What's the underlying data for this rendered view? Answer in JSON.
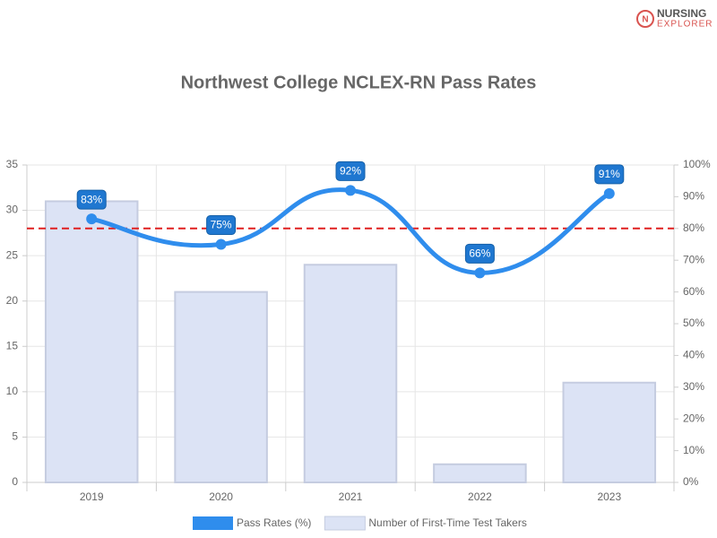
{
  "logo": {
    "line1": "NURSING",
    "line2": "EXPLORER"
  },
  "chart_data": {
    "type": "combo",
    "title": "Northwest College NCLEX-RN Pass Rates",
    "categories": [
      "2019",
      "2020",
      "2021",
      "2022",
      "2023"
    ],
    "series": [
      {
        "name": "Pass Rates (%)",
        "type": "line",
        "axis": "y2",
        "color": "#2f8ded",
        "values": [
          83,
          75,
          92,
          66,
          91
        ],
        "value_labels": [
          "83%",
          "75%",
          "92%",
          "66%",
          "91%"
        ]
      },
      {
        "name": "Number of First-Time Test Takers",
        "type": "bar",
        "axis": "y",
        "color": "#dce3f5",
        "values": [
          31,
          21,
          24,
          2,
          11
        ]
      }
    ],
    "ylim": [
      0,
      35
    ],
    "yticks": [
      0,
      5,
      10,
      15,
      20,
      25,
      30,
      35
    ],
    "y2lim": [
      0,
      100
    ],
    "y2ticks": [
      {
        "value": 0,
        "label": "0%"
      },
      {
        "value": 10,
        "label": "10%"
      },
      {
        "value": 20,
        "label": "20%"
      },
      {
        "value": 30,
        "label": "30%"
      },
      {
        "value": 40,
        "label": "40%"
      },
      {
        "value": 50,
        "label": "50%"
      },
      {
        "value": 60,
        "label": "60%"
      },
      {
        "value": 70,
        "label": "70%"
      },
      {
        "value": 80,
        "label": "80%"
      },
      {
        "value": 90,
        "label": "90%"
      },
      {
        "value": 100,
        "label": "100%"
      }
    ],
    "reference_line": {
      "value": 80,
      "axis": "y2",
      "color": "#e02020"
    },
    "grid": true
  }
}
